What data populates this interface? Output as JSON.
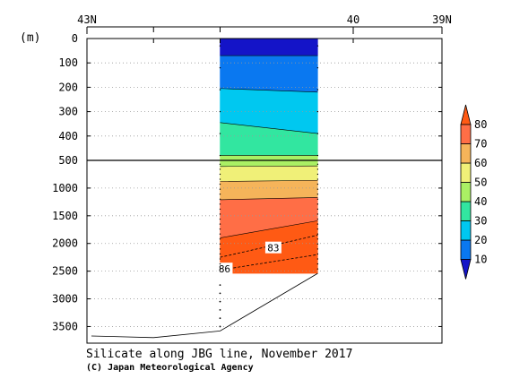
{
  "chart_data": {
    "type": "heatmap",
    "title": "Silicate along JBG line, November 2017",
    "credit": "(C) Japan Meteorological Agency",
    "ylabel": "(m)",
    "x_axis": {
      "range_latitude_N": [
        43,
        39
      ],
      "tick_labels": [
        "43N",
        "40",
        "39N"
      ],
      "tick_values": [
        43,
        40,
        39
      ],
      "minor_ticks": [
        42.25,
        41.5
      ]
    },
    "y_axis": {
      "upper_range_m": [
        0,
        500
      ],
      "upper_ticks": [
        0,
        100,
        200,
        300,
        400,
        500
      ],
      "lower_range_m": [
        500,
        3800
      ],
      "lower_ticks": [
        1000,
        1500,
        2000,
        2500,
        3000,
        3500
      ],
      "grid": "dotted"
    },
    "section_latitude_range_N": [
      41.5,
      40.4
    ],
    "colorbar": {
      "levels": [
        10,
        20,
        30,
        40,
        50,
        60,
        70,
        80
      ],
      "colors": [
        "#1414c8",
        "#0a78f0",
        "#00c8f0",
        "#32e6a0",
        "#aaf064",
        "#f0f078",
        "#f5b45a",
        "#ff6e46",
        "#ff5a14"
      ]
    },
    "layers": [
      {
        "band": "<10",
        "color": "#1414c8",
        "top_m": [
          0,
          0
        ],
        "bottom_m": [
          70,
          70
        ]
      },
      {
        "band": "10-20",
        "color": "#0a78f0",
        "top_m": [
          70,
          70
        ],
        "bottom_m": [
          205,
          220
        ]
      },
      {
        "band": "20-30",
        "color": "#00c8f0",
        "top_m": [
          205,
          220
        ],
        "bottom_m": [
          345,
          390
        ]
      },
      {
        "band": "30-40",
        "color": "#32e6a0",
        "top_m": [
          345,
          390
        ],
        "bottom_m": [
          480,
          480
        ]
      },
      {
        "band": "40-50",
        "color": "#aaf064",
        "top_m": [
          480,
          480
        ],
        "bottom_m": [
          610,
          600
        ]
      },
      {
        "band": "50-60",
        "color": "#f0f078",
        "top_m": [
          610,
          600
        ],
        "bottom_m": [
          880,
          860
        ]
      },
      {
        "band": "60-70",
        "color": "#f5b45a",
        "top_m": [
          880,
          860
        ],
        "bottom_m": [
          1210,
          1170
        ]
      },
      {
        "band": "70-80",
        "color": "#ff6e46",
        "top_m": [
          1210,
          1170
        ],
        "bottom_m": [
          1900,
          1590
        ]
      },
      {
        "band": ">80",
        "color": "#ff5a14",
        "top_m": [
          1900,
          1590
        ],
        "bottom_m": [
          2540,
          2540
        ]
      }
    ],
    "contour_labels": [
      {
        "text": "83",
        "lat": 40.9,
        "depth_m": 2080
      },
      {
        "text": "86",
        "lat": 41.45,
        "depth_m": 2460
      }
    ],
    "dashed_contours": [
      {
        "value": 83,
        "depth_m": [
          2250,
          1850
        ]
      },
      {
        "value": 86,
        "depth_m": [
          2480,
          2200
        ]
      }
    ],
    "bottom_topography": {
      "lat": [
        42.95,
        42.25,
        41.5,
        40.4
      ],
      "depth_m": [
        3670,
        3700,
        3580,
        2540
      ]
    },
    "station_lat": 41.5,
    "station_dot_depths_m": [
      2750,
      2900,
      3050,
      3200,
      3350,
      3500
    ]
  }
}
